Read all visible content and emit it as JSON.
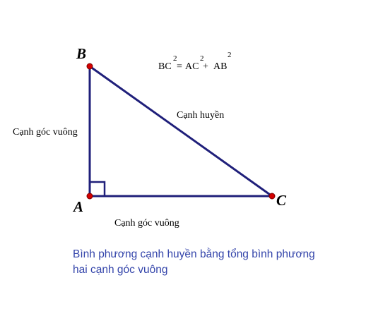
{
  "colors": {
    "line": "#1f1f7a",
    "point": "#d40000",
    "caption": "#3344aa"
  },
  "vertices": {
    "a": "A",
    "b": "B",
    "c": "C"
  },
  "formula": {
    "bc": "BC",
    "eq": "=",
    "ac": "AC",
    "plus": "+",
    "ab": "AB",
    "exp": "2"
  },
  "labels": {
    "hypotenuse": "Cạnh huyền",
    "leg_vertical": "Cạnh góc vuông",
    "leg_horizontal": "Cạnh góc vuông"
  },
  "caption": "Bình phương cạnh huyền bằng tổng bình phương hai cạnh góc vuông"
}
